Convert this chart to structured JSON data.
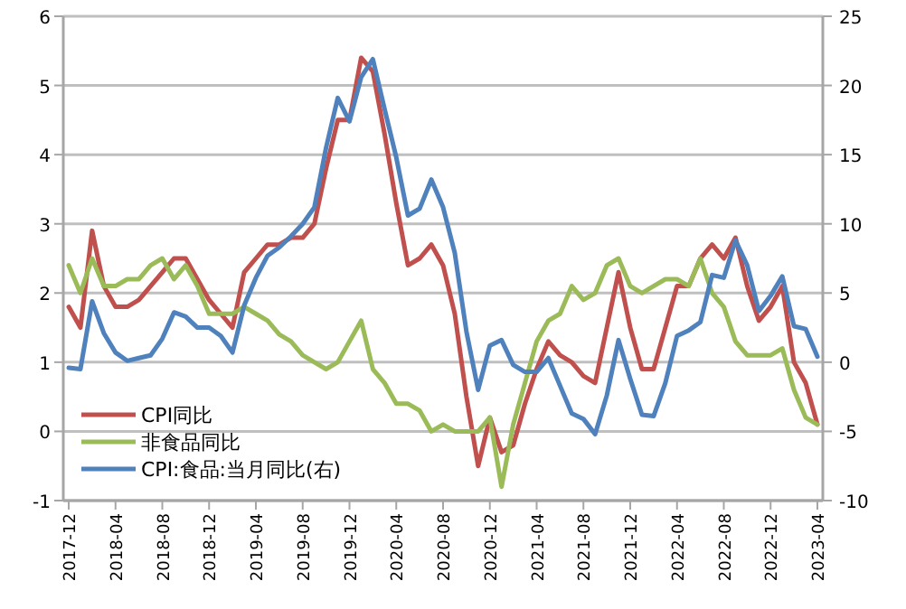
{
  "chart_data": {
    "type": "line",
    "categories": [
      "2017-12",
      null,
      null,
      null,
      "2018-04",
      null,
      null,
      null,
      "2018-08",
      null,
      null,
      null,
      "2018-12",
      null,
      null,
      null,
      "2019-04",
      null,
      null,
      null,
      "2019-08",
      null,
      null,
      null,
      "2019-12",
      null,
      null,
      null,
      "2020-04",
      null,
      null,
      null,
      "2020-08",
      null,
      null,
      null,
      "2020-12",
      null,
      null,
      null,
      "2021-04",
      null,
      null,
      null,
      "2021-08",
      null,
      null,
      null,
      "2021-12",
      null,
      null,
      null,
      "2022-04",
      null,
      null,
      null,
      "2022-08",
      null,
      null,
      null,
      "2022-12",
      null,
      null,
      null,
      "2023-04"
    ],
    "series": [
      {
        "name": "CPI同比",
        "color": "#c0504d",
        "values": [
          1.8,
          1.5,
          2.9,
          2.1,
          1.8,
          1.8,
          1.9,
          2.1,
          2.3,
          2.5,
          2.5,
          2.2,
          1.9,
          1.7,
          1.5,
          2.3,
          2.5,
          2.7,
          2.7,
          2.8,
          2.8,
          3.0,
          3.8,
          4.5,
          4.5,
          5.4,
          5.2,
          4.3,
          3.3,
          2.4,
          2.5,
          2.7,
          2.4,
          1.7,
          0.5,
          -0.5,
          0.2,
          -0.3,
          -0.2,
          0.4,
          0.9,
          1.3,
          1.1,
          1.0,
          0.8,
          0.7,
          1.5,
          2.3,
          1.5,
          0.9,
          0.9,
          1.5,
          2.1,
          2.1,
          2.5,
          2.7,
          2.5,
          2.8,
          2.1,
          1.6,
          1.8,
          2.1,
          1.0,
          0.7,
          0.1
        ]
      },
      {
        "name": "非食品同比",
        "color": "#9bbb59",
        "values": [
          2.4,
          2.0,
          2.5,
          2.1,
          2.1,
          2.2,
          2.2,
          2.4,
          2.5,
          2.2,
          2.4,
          2.1,
          1.7,
          1.7,
          1.7,
          1.8,
          1.7,
          1.6,
          1.4,
          1.3,
          1.1,
          1.0,
          0.9,
          1.0,
          1.3,
          1.6,
          0.9,
          0.7,
          0.4,
          0.4,
          0.3,
          0.0,
          0.1,
          0.0,
          0.0,
          0.0,
          0.2,
          -0.8,
          0.1,
          0.7,
          1.3,
          1.6,
          1.7,
          2.1,
          1.9,
          2.0,
          2.4,
          2.5,
          2.1,
          2.0,
          2.1,
          2.2,
          2.2,
          2.1,
          2.5,
          2.0,
          1.8,
          1.3,
          1.1,
          1.1,
          1.1,
          1.2,
          0.6,
          0.2,
          0.1
        ]
      },
      {
        "name": "CPI:食品:当月同比(右)",
        "color": "#4f81bd",
        "axis": "y2",
        "values": [
          -0.4,
          -0.5,
          4.4,
          2.1,
          0.7,
          0.1,
          0.3,
          0.5,
          1.7,
          3.6,
          3.3,
          2.5,
          2.5,
          1.9,
          0.7,
          4.1,
          6.1,
          7.7,
          8.3,
          9.1,
          10.0,
          11.2,
          15.5,
          19.1,
          17.4,
          20.6,
          21.9,
          18.3,
          14.8,
          10.6,
          11.1,
          13.2,
          11.2,
          7.9,
          2.2,
          -2.0,
          1.2,
          1.6,
          -0.2,
          -0.7,
          -0.7,
          0.3,
          -1.7,
          -3.7,
          -4.1,
          -5.2,
          -2.4,
          1.6,
          -1.2,
          -3.8,
          -3.9,
          -1.5,
          1.9,
          2.3,
          2.9,
          6.3,
          6.1,
          8.8,
          7.0,
          3.7,
          4.8,
          6.2,
          2.6,
          2.4,
          0.4
        ]
      }
    ],
    "ylim": [
      -1,
      6
    ],
    "yticks": [
      -1,
      0,
      1,
      2,
      3,
      4,
      5,
      6
    ],
    "y2lim": [
      -10,
      25
    ],
    "y2ticks": [
      -10,
      -5,
      0,
      5,
      10,
      15,
      20,
      25
    ],
    "grid": "y",
    "legend": "bottom left"
  }
}
